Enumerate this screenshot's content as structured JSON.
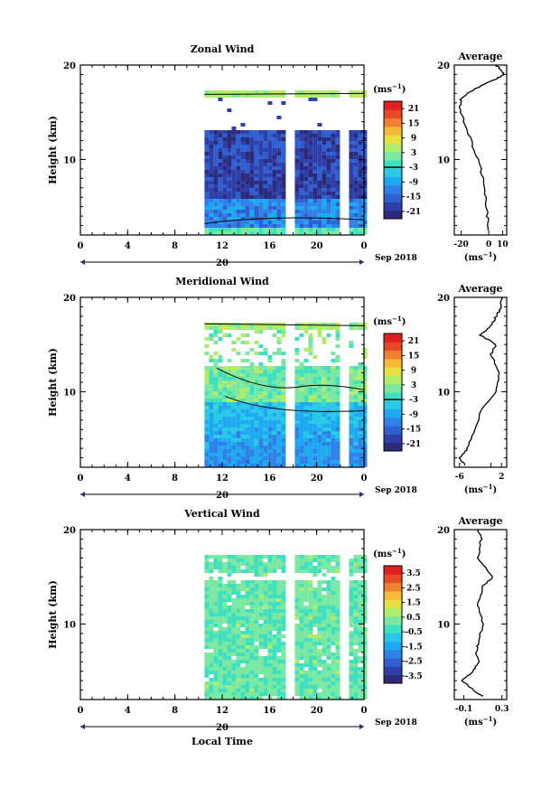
{
  "colorbar_unit_base": "(ms",
  "colorbar_unit_exp": "−1",
  "colorbar_unit_close": ")",
  "date_label": "Sep 2018",
  "day_label": "20",
  "colors": {
    "scale": [
      "#2b2b7a",
      "#2f3fa8",
      "#2f5fd0",
      "#2f80e8",
      "#1ea8f0",
      "#27c8e8",
      "#3fe0c0",
      "#7ae8a0",
      "#b0ec6a",
      "#e8e040",
      "#f8b838",
      "#f08030",
      "#e84828",
      "#e02020"
    ]
  },
  "chart_data": [
    {
      "type": "heatmap",
      "title": "Zonal Wind",
      "ylabel": "Height (km)",
      "xlabel": "",
      "x_ticks": [
        "0",
        "4",
        "8",
        "12",
        "16",
        "20",
        "0"
      ],
      "x_range_hours": [
        0,
        24
      ],
      "y_ticks": [
        "20",
        "10"
      ],
      "y_range_km": [
        2,
        20
      ],
      "data_coverage_hours": [
        10.5,
        24
      ],
      "gaps_hours": [
        17.5,
        22.0
      ],
      "colorbar_ticks": [
        "21",
        "15",
        "9",
        "3",
        "-3",
        "-9",
        "-15",
        "-21"
      ],
      "colorbar_range": [
        -24,
        24
      ],
      "profile": {
        "title": "Average",
        "xlabel_base": "(ms",
        "xlabel_exp": "−1",
        "xlabel_close": ")",
        "x_ticks": [
          "-20",
          "0",
          "10"
        ],
        "x_range": [
          -25,
          13
        ],
        "y_ticks": [
          "20",
          "10"
        ],
        "points": [
          [
            0,
            2.5
          ],
          [
            -1,
            4
          ],
          [
            -2,
            6
          ],
          [
            -4,
            8
          ],
          [
            -8,
            10
          ],
          [
            -13,
            12
          ],
          [
            -18,
            14
          ],
          [
            -21,
            15.5
          ],
          [
            -20,
            16.5
          ],
          [
            -10,
            17.5
          ],
          [
            5,
            18.5
          ],
          [
            11,
            19
          ],
          [
            9,
            19.5
          ],
          [
            5,
            20
          ]
        ]
      }
    },
    {
      "type": "heatmap",
      "title": "Meridional Wind",
      "ylabel": "Height (km)",
      "xlabel": "",
      "x_ticks": [
        "0",
        "4",
        "8",
        "12",
        "16",
        "20",
        "0"
      ],
      "x_range_hours": [
        0,
        24
      ],
      "y_ticks": [
        "20",
        "10"
      ],
      "y_range_km": [
        2,
        20
      ],
      "data_coverage_hours": [
        10.5,
        24
      ],
      "gaps_hours": [
        17.5,
        22.0
      ],
      "colorbar_ticks": [
        "21",
        "15",
        "9",
        "3",
        "-3",
        "-9",
        "-15",
        "-21"
      ],
      "colorbar_range": [
        -24,
        24
      ],
      "profile": {
        "title": "Average",
        "xlabel_base": "(ms",
        "xlabel_exp": "−1",
        "xlabel_close": ")",
        "x_ticks": [
          "-6",
          "2",
          "2"
        ],
        "x_range": [
          -7,
          3
        ],
        "y_ticks": [
          "20",
          "10"
        ],
        "points": [
          [
            -5,
            2.2
          ],
          [
            -6,
            3
          ],
          [
            -4.5,
            4
          ],
          [
            -3,
            6
          ],
          [
            -2,
            8
          ],
          [
            1,
            10
          ],
          [
            1.5,
            12
          ],
          [
            0,
            14
          ],
          [
            1,
            15
          ],
          [
            -2,
            16
          ],
          [
            0,
            17
          ],
          [
            1,
            18
          ],
          [
            2,
            19
          ],
          [
            2,
            20
          ]
        ]
      }
    },
    {
      "type": "heatmap",
      "title": "Vertical Wind",
      "ylabel": "Height (km)",
      "xlabel": "Local Time",
      "x_ticks": [
        "0",
        "4",
        "8",
        "12",
        "16",
        "20",
        "0"
      ],
      "x_range_hours": [
        0,
        24
      ],
      "y_ticks": [
        "20",
        "10"
      ],
      "y_range_km": [
        2,
        20
      ],
      "data_coverage_hours": [
        10.5,
        24
      ],
      "gaps_hours": [
        17.5,
        22.0
      ],
      "colorbar_ticks": [
        "3.5",
        "2.5",
        "1.5",
        "0.5",
        "-0.5",
        "-1.5",
        "-2.5",
        "-3.5"
      ],
      "colorbar_range": [
        -4,
        4
      ],
      "profile": {
        "title": "Average",
        "xlabel_base": "(ms",
        "xlabel_exp": "−1",
        "xlabel_close": ")",
        "x_ticks": [
          "-0.1",
          "0.3"
        ],
        "x_range": [
          -0.2,
          0.35
        ],
        "y_ticks": [
          "20",
          "10"
        ],
        "points": [
          [
            0.1,
            2.3
          ],
          [
            0.0,
            3
          ],
          [
            -0.12,
            4
          ],
          [
            0.0,
            5
          ],
          [
            0.05,
            6
          ],
          [
            0.03,
            7
          ],
          [
            0.05,
            8
          ],
          [
            0.1,
            10
          ],
          [
            0.05,
            12
          ],
          [
            0.1,
            14
          ],
          [
            0.2,
            15
          ],
          [
            0.05,
            17
          ],
          [
            0.08,
            19
          ],
          [
            0.05,
            20
          ]
        ]
      }
    }
  ]
}
